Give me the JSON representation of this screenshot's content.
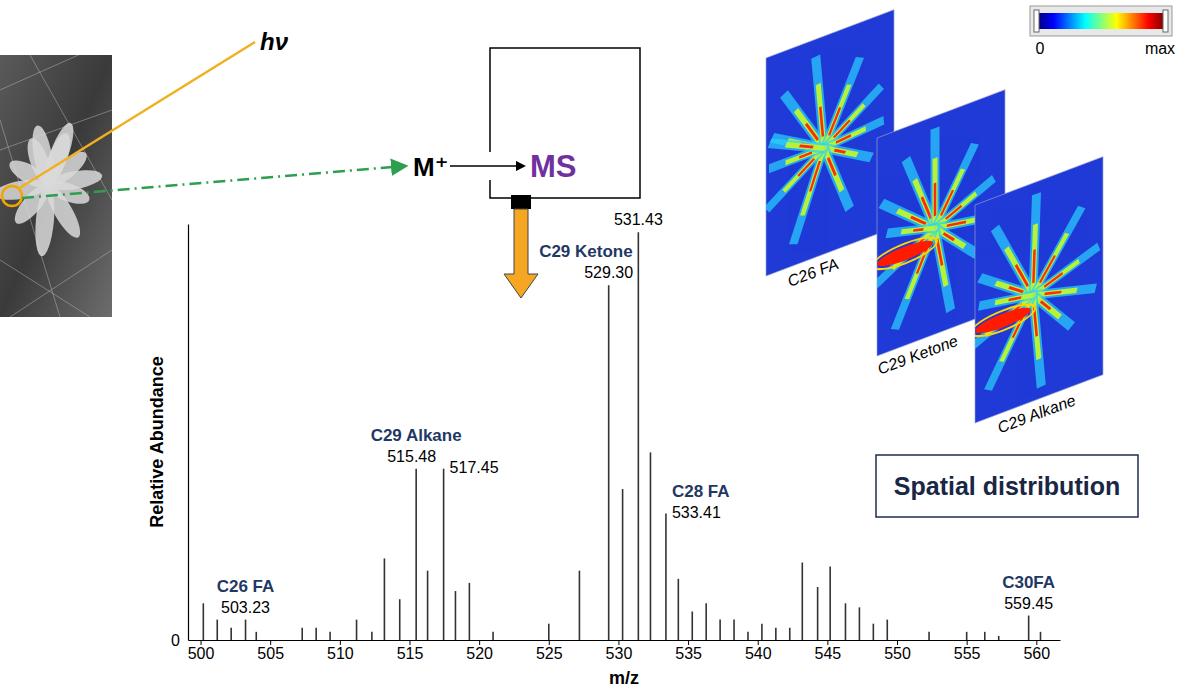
{
  "chart_data": {
    "type": "stick",
    "x_label": "m/z",
    "y_label": "Relative Abundance",
    "x": [
      500.2,
      501.2,
      502.2,
      503.23,
      504.0,
      507.3,
      508.3,
      509.3,
      511.2,
      512.3,
      513.2,
      514.3,
      515.48,
      516.3,
      517.45,
      518.3,
      519.3,
      521.0,
      525.0,
      527.2,
      529.3,
      530.3,
      531.43,
      532.3,
      533.41,
      534.3,
      535.3,
      536.3,
      537.3,
      538.3,
      539.3,
      540.3,
      541.3,
      542.3,
      543.2,
      544.3,
      545.2,
      546.3,
      547.3,
      548.3,
      549.3,
      552.3,
      555.0,
      556.3,
      557.3,
      559.45,
      560.3
    ],
    "values": [
      9,
      5,
      3,
      5,
      2,
      3,
      3,
      2,
      5,
      2,
      20,
      10,
      42,
      17,
      42,
      12,
      14,
      2,
      4,
      17,
      87,
      37,
      100,
      46,
      31,
      15,
      7,
      9,
      5,
      5,
      2,
      4,
      3,
      3,
      19,
      13,
      18,
      9,
      8,
      4,
      5,
      2,
      2,
      2,
      1,
      6,
      2
    ],
    "color": "#333333",
    "xlim": [
      499.1,
      561.7
    ],
    "xticks": [
      500,
      505,
      510,
      515,
      520,
      525,
      530,
      535,
      540,
      545,
      550,
      555,
      560
    ],
    "ylim": [
      0,
      102
    ],
    "yticks": [
      0
    ],
    "annotations": [
      {
        "text": "C26 FA",
        "x": 503.23,
        "label": "503.23"
      },
      {
        "text": "C29 Alkane",
        "x": 515.48,
        "label": "515.48"
      },
      {
        "x": 517.45,
        "label": "517.45"
      },
      {
        "text": "C29 Ketone",
        "x": 529.3,
        "label": "529.30"
      },
      {
        "x": 531.43,
        "label": "531.43"
      },
      {
        "text": "C28 FA",
        "x": 533.41,
        "label": "533.41"
      },
      {
        "text": "C30FA",
        "x": 559.45,
        "label": "559.45"
      }
    ]
  },
  "diagram": {
    "photon": "hν",
    "ion": "M⁺",
    "analyzer": "MS",
    "images": [
      "C26 FA",
      "C29 Ketone",
      "C29 Alkane"
    ],
    "colorbar_labels": [
      "0",
      "max"
    ],
    "caption": "Spatial distribution"
  }
}
